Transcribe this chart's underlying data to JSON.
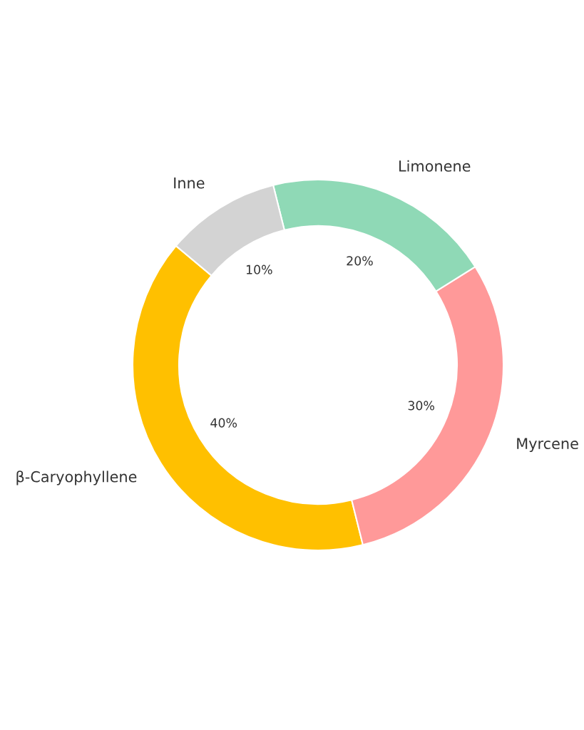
{
  "chart_data": {
    "type": "donut",
    "categories": [
      "β-Caryophyllene",
      "Myrcene",
      "Limonene",
      "Inne"
    ],
    "values": [
      40,
      30,
      20,
      10
    ],
    "colors": [
      "#ffc000",
      "#ff9999",
      "#8fd9b6",
      "#d3d3d3"
    ],
    "value_labels": [
      "40%",
      "30%",
      "20%",
      "10%"
    ]
  }
}
